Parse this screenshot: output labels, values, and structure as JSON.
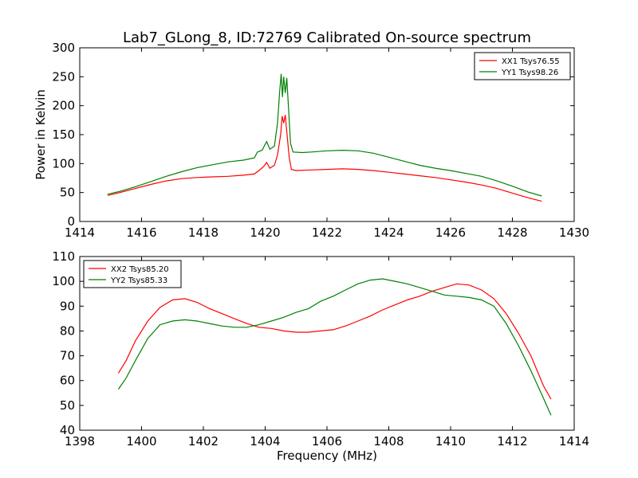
{
  "title": "Lab7_GLong_8, ID:72769 Calibrated On-source spectrum",
  "chart_data": [
    {
      "type": "line",
      "xlabel": "",
      "ylabel": "Power in Kelvin",
      "xlim": [
        1414,
        1430
      ],
      "ylim": [
        0,
        300
      ],
      "xticks": [
        1414,
        1416,
        1418,
        1420,
        1422,
        1424,
        1426,
        1428,
        1430
      ],
      "yticks": [
        0,
        50,
        100,
        150,
        200,
        250,
        300
      ],
      "legend_position": "top-right",
      "series": [
        {
          "name": "XX1 Tsys76.55",
          "color": "#ff0000",
          "points": [
            [
              1414.9,
              45
            ],
            [
              1415.3,
              50
            ],
            [
              1415.8,
              57
            ],
            [
              1416.3,
              64
            ],
            [
              1416.8,
              70
            ],
            [
              1417.3,
              74
            ],
            [
              1417.8,
              76
            ],
            [
              1418.3,
              77
            ],
            [
              1418.8,
              78
            ],
            [
              1419.3,
              80
            ],
            [
              1419.65,
              82
            ],
            [
              1419.8,
              88
            ],
            [
              1419.95,
              95
            ],
            [
              1420.05,
              102
            ],
            [
              1420.15,
              92
            ],
            [
              1420.3,
              97
            ],
            [
              1420.4,
              115
            ],
            [
              1420.5,
              150
            ],
            [
              1420.55,
              182
            ],
            [
              1420.6,
              170
            ],
            [
              1420.65,
              184
            ],
            [
              1420.7,
              155
            ],
            [
              1420.78,
              110
            ],
            [
              1420.85,
              90
            ],
            [
              1421.0,
              88
            ],
            [
              1421.5,
              89
            ],
            [
              1422,
              90
            ],
            [
              1422.5,
              91
            ],
            [
              1423,
              90
            ],
            [
              1423.5,
              88
            ],
            [
              1424,
              85
            ],
            [
              1424.5,
              82
            ],
            [
              1425,
              79
            ],
            [
              1425.5,
              76
            ],
            [
              1426,
              72
            ],
            [
              1426.5,
              68
            ],
            [
              1427,
              63
            ],
            [
              1427.5,
              57
            ],
            [
              1428,
              49
            ],
            [
              1428.5,
              41
            ],
            [
              1428.95,
              35
            ]
          ]
        },
        {
          "name": "YY1 Tsys98.26",
          "color": "#008000",
          "points": [
            [
              1414.9,
              47
            ],
            [
              1415.3,
              52
            ],
            [
              1415.8,
              60
            ],
            [
              1416.3,
              69
            ],
            [
              1416.8,
              78
            ],
            [
              1417.3,
              86
            ],
            [
              1417.8,
              93
            ],
            [
              1418.3,
              98
            ],
            [
              1418.8,
              103
            ],
            [
              1419.3,
              106
            ],
            [
              1419.65,
              110
            ],
            [
              1419.75,
              120
            ],
            [
              1419.9,
              123
            ],
            [
              1420.05,
              138
            ],
            [
              1420.15,
              125
            ],
            [
              1420.3,
              130
            ],
            [
              1420.4,
              170
            ],
            [
              1420.47,
              225
            ],
            [
              1420.52,
              255
            ],
            [
              1420.56,
              215
            ],
            [
              1420.6,
              250
            ],
            [
              1420.65,
              222
            ],
            [
              1420.7,
              248
            ],
            [
              1420.75,
              200
            ],
            [
              1420.82,
              135
            ],
            [
              1420.9,
              120
            ],
            [
              1421.2,
              119
            ],
            [
              1421.5,
              120
            ],
            [
              1422,
              122
            ],
            [
              1422.5,
              123
            ],
            [
              1423,
              122
            ],
            [
              1423.5,
              118
            ],
            [
              1424,
              111
            ],
            [
              1424.5,
              104
            ],
            [
              1425,
              97
            ],
            [
              1425.5,
              92
            ],
            [
              1426,
              88
            ],
            [
              1426.5,
              83
            ],
            [
              1427,
              78
            ],
            [
              1427.5,
              70
            ],
            [
              1428,
              61
            ],
            [
              1428.5,
              51
            ],
            [
              1428.95,
              44
            ]
          ]
        }
      ]
    },
    {
      "type": "line",
      "xlabel": "Frequency (MHz)",
      "ylabel": "",
      "xlim": [
        1398,
        1414
      ],
      "ylim": [
        40,
        110
      ],
      "xticks": [
        1398,
        1400,
        1402,
        1404,
        1406,
        1408,
        1410,
        1412,
        1414
      ],
      "yticks": [
        40,
        50,
        60,
        70,
        80,
        90,
        100,
        110
      ],
      "legend_position": "top-left",
      "series": [
        {
          "name": "XX2 Tsys85.20",
          "color": "#ff0000",
          "points": [
            [
              1399.25,
              63
            ],
            [
              1399.5,
              68
            ],
            [
              1399.8,
              76
            ],
            [
              1400.2,
              84
            ],
            [
              1400.6,
              89.5
            ],
            [
              1401,
              92.5
            ],
            [
              1401.4,
              93
            ],
            [
              1401.8,
              91.5
            ],
            [
              1402.2,
              89
            ],
            [
              1402.6,
              87
            ],
            [
              1403,
              85
            ],
            [
              1403.4,
              83
            ],
            [
              1403.8,
              81.5
            ],
            [
              1404.2,
              81
            ],
            [
              1404.6,
              80
            ],
            [
              1405,
              79.5
            ],
            [
              1405.4,
              79.5
            ],
            [
              1405.8,
              80
            ],
            [
              1406.2,
              80.5
            ],
            [
              1406.6,
              82
            ],
            [
              1407,
              84
            ],
            [
              1407.4,
              86
            ],
            [
              1407.8,
              88.5
            ],
            [
              1408.2,
              90.5
            ],
            [
              1408.6,
              92.5
            ],
            [
              1409,
              94
            ],
            [
              1409.4,
              96
            ],
            [
              1409.8,
              97.5
            ],
            [
              1410.2,
              99
            ],
            [
              1410.6,
              98.5
            ],
            [
              1411,
              96.5
            ],
            [
              1411.4,
              93
            ],
            [
              1411.8,
              87
            ],
            [
              1412.2,
              79
            ],
            [
              1412.6,
              70
            ],
            [
              1413,
              58
            ],
            [
              1413.25,
              52.5
            ]
          ]
        },
        {
          "name": "YY2 Tsys85.33",
          "color": "#008000",
          "points": [
            [
              1399.25,
              56.5
            ],
            [
              1399.5,
              61
            ],
            [
              1399.8,
              68
            ],
            [
              1400.2,
              77
            ],
            [
              1400.6,
              82.5
            ],
            [
              1401,
              84
            ],
            [
              1401.4,
              84.5
            ],
            [
              1401.8,
              84
            ],
            [
              1402.2,
              83
            ],
            [
              1402.6,
              82
            ],
            [
              1403,
              81.5
            ],
            [
              1403.4,
              81.5
            ],
            [
              1403.8,
              82.5
            ],
            [
              1404.2,
              84
            ],
            [
              1404.6,
              85.5
            ],
            [
              1405,
              87.5
            ],
            [
              1405.4,
              89
            ],
            [
              1405.8,
              92
            ],
            [
              1406.2,
              94
            ],
            [
              1406.6,
              96.5
            ],
            [
              1407,
              99
            ],
            [
              1407.4,
              100.5
            ],
            [
              1407.8,
              101
            ],
            [
              1408.2,
              100
            ],
            [
              1408.6,
              99
            ],
            [
              1409,
              97.5
            ],
            [
              1409.4,
              96
            ],
            [
              1409.8,
              94.5
            ],
            [
              1410.2,
              94
            ],
            [
              1410.6,
              93.5
            ],
            [
              1411,
              92.5
            ],
            [
              1411.4,
              90
            ],
            [
              1411.8,
              83
            ],
            [
              1412.2,
              74
            ],
            [
              1412.6,
              64
            ],
            [
              1413,
              53
            ],
            [
              1413.25,
              46
            ]
          ]
        }
      ]
    }
  ]
}
